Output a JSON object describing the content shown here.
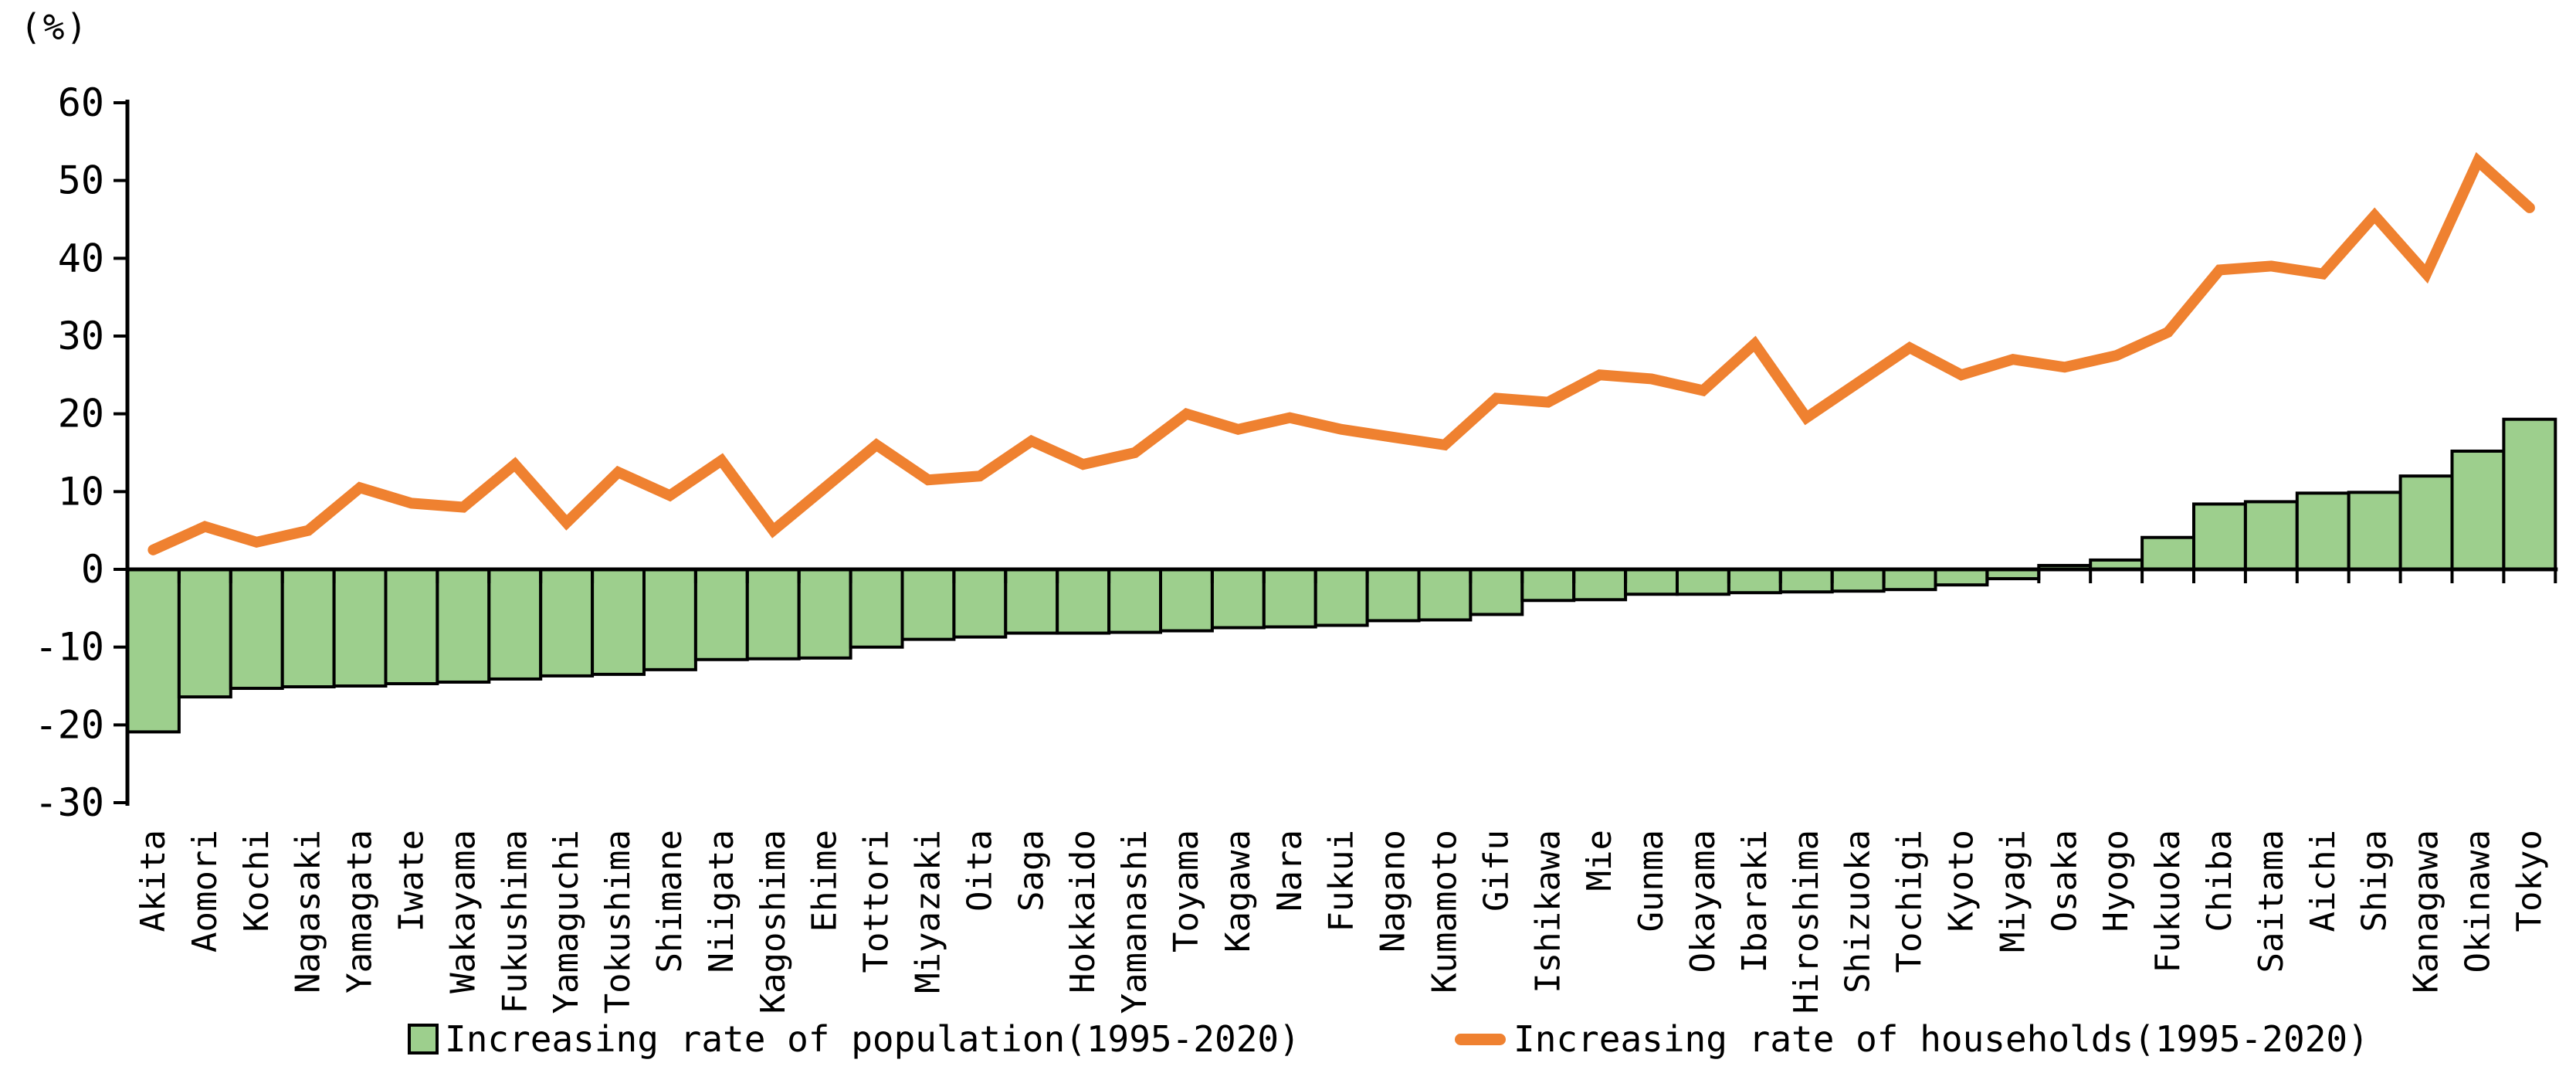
{
  "figure": {
    "percent_label": "(%)"
  },
  "chart_data": {
    "type": "bar+line combo",
    "title": "",
    "xlabel": "",
    "ylabel": "(%)",
    "ylim": [
      -30,
      60
    ],
    "yticks": [
      60,
      50,
      40,
      30,
      20,
      10,
      0,
      -10,
      -20,
      -30
    ],
    "grid": false,
    "legend_position": "bottom",
    "categories": [
      "Akita",
      "Aomori",
      "Kochi",
      "Nagasaki",
      "Yamagata",
      "Iwate",
      "Wakayama",
      "Fukushima",
      "Yamaguchi",
      "Tokushima",
      "Shimane",
      "Niigata",
      "Kagoshima",
      "Ehime",
      "Tottori",
      "Miyazaki",
      "Oita",
      "Saga",
      "Hokkaido",
      "Yamanashi",
      "Toyama",
      "Kagawa",
      "Nara",
      "Fukui",
      "Nagano",
      "Kumamoto",
      "Gifu",
      "Ishikawa",
      "Mie",
      "Gunma",
      "Okayama",
      "Ibaraki",
      "Hiroshima",
      "Shizuoka",
      "Tochigi",
      "Kyoto",
      "Miyagi",
      "Osaka",
      "Hyogo",
      "Fukuoka",
      "Chiba",
      "Saitama",
      "Aichi",
      "Shiga",
      "Kanagawa",
      "Okinawa",
      "Tokyo"
    ],
    "series": [
      {
        "name": "Increasing rate of population(1995-2020)",
        "type": "bar",
        "color": "#9DCF8D",
        "border_color": "#000000",
        "values": [
          -20.9,
          -16.4,
          -15.3,
          -15.1,
          -15.0,
          -14.7,
          -14.5,
          -14.1,
          -13.7,
          -13.5,
          -12.9,
          -11.6,
          -11.5,
          -11.4,
          -10.0,
          -9.0,
          -8.7,
          -8.2,
          -8.2,
          -8.1,
          -7.9,
          -7.5,
          -7.4,
          -7.2,
          -6.6,
          -6.5,
          -5.8,
          -4.0,
          -3.9,
          -3.2,
          -3.2,
          -3.0,
          -2.9,
          -2.8,
          -2.6,
          -2.0,
          -1.2,
          0.5,
          1.2,
          4.1,
          8.4,
          8.7,
          9.8,
          9.9,
          12.0,
          15.2,
          19.3
        ]
      },
      {
        "name": "Increasing rate of households(1995-2020)",
        "type": "line",
        "color": "#EF8130",
        "values": [
          2.5,
          5.5,
          3.5,
          5.0,
          10.5,
          8.5,
          8.0,
          13.5,
          6.0,
          12.5,
          9.5,
          14.0,
          5.0,
          10.5,
          16.0,
          11.5,
          12.0,
          16.5,
          13.5,
          15.0,
          20.0,
          18.0,
          19.5,
          18.0,
          17.0,
          16.0,
          22.0,
          21.5,
          25.0,
          24.5,
          23.0,
          29.0,
          19.5,
          24.0,
          28.5,
          25.0,
          27.0,
          26.0,
          27.5,
          30.5,
          38.5,
          39.0,
          38.0,
          45.5,
          38.0,
          52.5,
          46.5
        ]
      }
    ]
  }
}
